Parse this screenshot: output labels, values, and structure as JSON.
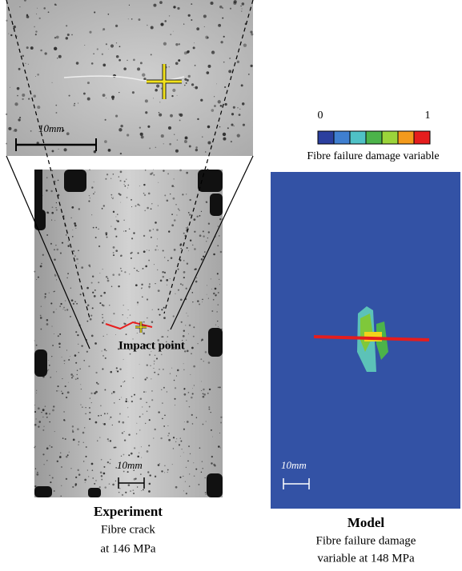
{
  "inset": {
    "scale_label": "10mm"
  },
  "experiment": {
    "scale_label": "10mm",
    "annotation": "Impact point",
    "title": "Experiment",
    "caption_lines": [
      "Fibre crack",
      "at 146 MPa"
    ]
  },
  "model": {
    "scale_label": "10mm",
    "title": "Model",
    "caption_lines": [
      "Fibre failure damage",
      "variable at 148 MPa"
    ],
    "colorbar": {
      "min_label": "0",
      "max_label": "1",
      "label": "Fibre failure damage variable"
    }
  }
}
